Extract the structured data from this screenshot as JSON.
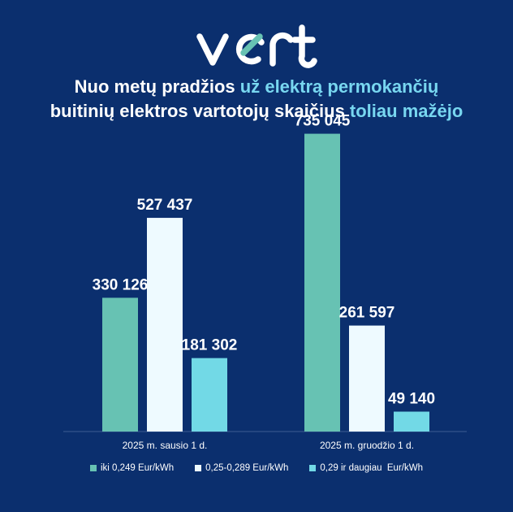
{
  "logo": {
    "text": "vert"
  },
  "title": {
    "line1_plain": "Nuo metų pradžios ",
    "line1_accent": "už elektrą permokančių",
    "line2_plain": "buitinių elektros vartotojų skaičius ",
    "line2_accent": "toliau mažėjo"
  },
  "colors": {
    "background": "#0b2f6e",
    "accent_text": "#78d7f0",
    "series": [
      "#67c2b3",
      "#eefaff",
      "#72d9e6"
    ]
  },
  "chart_data": {
    "type": "bar",
    "categories": [
      "2025 m. sausio 1 d.",
      "2025 m. gruodžio 1 d."
    ],
    "series": [
      {
        "name": "iki 0,249 Eur/kWh",
        "values": [
          330126,
          735045
        ],
        "labels": [
          "330 126",
          "735 045"
        ]
      },
      {
        "name": "0,25-0,289 Eur/kWh",
        "values": [
          527437,
          261597
        ],
        "labels": [
          "527 437",
          "261 597"
        ]
      },
      {
        "name": "0,29 ir daugiau  Eur/kWh",
        "values": [
          181302,
          49140
        ],
        "labels": [
          "181 302",
          "49 140"
        ]
      }
    ],
    "ylim": [
      0,
      800000
    ],
    "grid": false,
    "legend_position": "bottom"
  }
}
